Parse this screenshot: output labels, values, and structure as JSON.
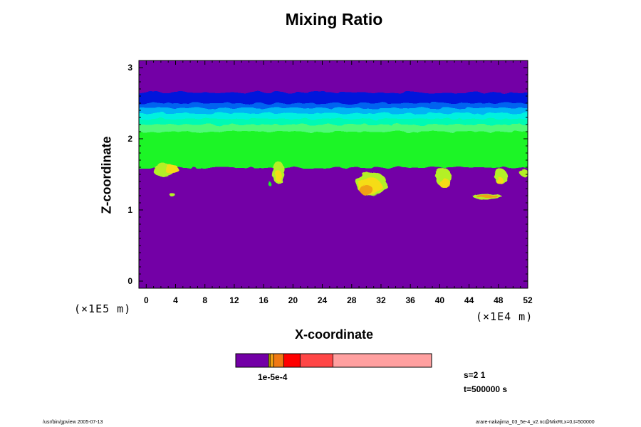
{
  "chart_data": {
    "type": "heatmap",
    "title": "Mixing Ratio",
    "xlabel": "X-coordinate",
    "ylabel": "Z-coordinate",
    "x_scale_label": "(×1E4 m)",
    "y_scale_label": "(×1E5 m)",
    "xlim": [
      -1,
      52
    ],
    "ylim": [
      -0.1,
      3.1
    ],
    "x_ticks": [
      0,
      4,
      8,
      12,
      16,
      20,
      24,
      28,
      32,
      36,
      40,
      44,
      48,
      52
    ],
    "y_ticks": [
      0,
      1,
      2,
      3
    ],
    "colors": {
      "background": "#7300a6",
      "band_dark_blue": "#0018dc",
      "band_blue": "#0064f0",
      "band_sky": "#00b4f5",
      "band_cyan": "#00f0e0",
      "band_aqua": "#00fab4",
      "band_green_light": "#50fa78",
      "band_green": "#1ef528",
      "cloud_yellow_green": "#b4f028",
      "cloud_yellow": "#f5dc14",
      "cloud_orange": "#f0a014"
    },
    "layers": [
      {
        "name": "upper-top",
        "z_top": 3.1,
        "z_bottom": 2.65,
        "color": "#7300a6"
      },
      {
        "name": "dark-blue",
        "z_top": 2.65,
        "z_bottom": 2.5,
        "color": "#0018dc"
      },
      {
        "name": "blue",
        "z_top": 2.5,
        "z_bottom": 2.43,
        "color": "#0064f0"
      },
      {
        "name": "sky",
        "z_top": 2.43,
        "z_bottom": 2.36,
        "color": "#00b4f5"
      },
      {
        "name": "cyan",
        "z_top": 2.36,
        "z_bottom": 2.28,
        "color": "#00f0e0"
      },
      {
        "name": "aqua",
        "z_top": 2.28,
        "z_bottom": 2.2,
        "color": "#00fab4"
      },
      {
        "name": "light-green",
        "z_top": 2.2,
        "z_bottom": 2.1,
        "color": "#50fa78"
      },
      {
        "name": "green",
        "z_top": 2.1,
        "z_bottom": 1.6,
        "color": "#1ef528"
      }
    ],
    "cloud_base_z": 1.58,
    "blobs": [
      {
        "x": 2.5,
        "z": 1.55,
        "rx": 1.5,
        "rz": 0.09,
        "color": "#b4f028"
      },
      {
        "x": 3.5,
        "z": 1.57,
        "rx": 0.9,
        "rz": 0.07,
        "color": "#f5dc14"
      },
      {
        "x": 3.5,
        "z": 1.22,
        "rx": 0.35,
        "rz": 0.03,
        "color": "#b4f028"
      },
      {
        "x": 18.0,
        "z": 1.53,
        "rx": 0.8,
        "rz": 0.16,
        "color": "#b4f028"
      },
      {
        "x": 18.0,
        "z": 1.48,
        "rx": 0.45,
        "rz": 0.08,
        "color": "#f5dc14"
      },
      {
        "x": 16.8,
        "z": 1.37,
        "rx": 0.2,
        "rz": 0.03,
        "color": "#1ef528"
      },
      {
        "x": 30.7,
        "z": 1.37,
        "rx": 2.1,
        "rz": 0.17,
        "color": "#b4f028"
      },
      {
        "x": 30.5,
        "z": 1.33,
        "rx": 1.6,
        "rz": 0.12,
        "color": "#f5dc14"
      },
      {
        "x": 30.0,
        "z": 1.28,
        "rx": 0.9,
        "rz": 0.07,
        "color": "#f0a014"
      },
      {
        "x": 40.5,
        "z": 1.46,
        "rx": 1.1,
        "rz": 0.13,
        "color": "#b4f028"
      },
      {
        "x": 40.7,
        "z": 1.37,
        "rx": 0.7,
        "rz": 0.07,
        "color": "#f5dc14"
      },
      {
        "x": 46.5,
        "z": 1.19,
        "rx": 2.0,
        "rz": 0.04,
        "color": "#b4f028"
      },
      {
        "x": 46.5,
        "z": 1.19,
        "rx": 1.5,
        "rz": 0.025,
        "color": "#f0a014"
      },
      {
        "x": 48.3,
        "z": 1.47,
        "rx": 0.9,
        "rz": 0.11,
        "color": "#b4f028"
      },
      {
        "x": 48.2,
        "z": 1.41,
        "rx": 0.5,
        "rz": 0.05,
        "color": "#f5dc14"
      },
      {
        "x": 51.5,
        "z": 1.52,
        "rx": 0.6,
        "rz": 0.05,
        "color": "#b4f028"
      }
    ]
  },
  "colorbar": {
    "segments": [
      {
        "color": "#7300a6",
        "weight": 46
      },
      {
        "color": "#c8c800",
        "weight": 2
      },
      {
        "color": "#f0a014",
        "weight": 5
      },
      {
        "color": "#f07814",
        "weight": 14
      },
      {
        "color": "#ff0000",
        "weight": 23
      },
      {
        "color": "#ff4646",
        "weight": 46
      },
      {
        "color": "#ffa0a0",
        "weight": 138
      }
    ],
    "label": "1e-5e-4"
  },
  "info": {
    "s": "s=2 1",
    "t": "t=500000 s"
  },
  "footer": {
    "left": "/usr/bin/gpview 2005-07-13",
    "right": "arare-nakajima_03_5e-4_v2.nc@MixRt,x=0,t=500000"
  }
}
